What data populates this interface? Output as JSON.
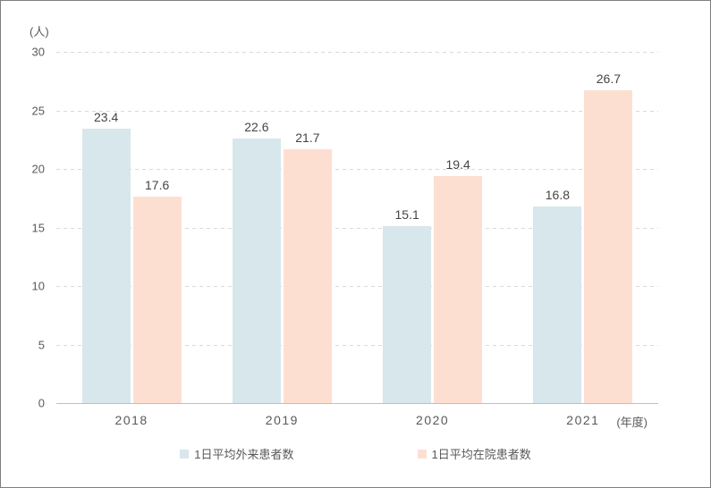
{
  "chart_data": {
    "type": "bar",
    "categories": [
      "2018",
      "2019",
      "2020",
      "2021"
    ],
    "series": [
      {
        "name": "1日平均外来患者数",
        "color": "#d7e7ec",
        "values": [
          23.4,
          22.6,
          15.1,
          16.8
        ]
      },
      {
        "name": "1日平均在院患者数",
        "color": "#fddfd2",
        "values": [
          17.6,
          21.7,
          19.4,
          26.7
        ]
      }
    ],
    "title": "",
    "xlabel": "(年度)",
    "ylabel": "(人)",
    "ylim": [
      0,
      30
    ],
    "yticks": [
      0,
      5,
      10,
      15,
      20,
      25,
      30
    ],
    "grid": "horizontal-dashed",
    "legend_position": "bottom",
    "bar_label_format": "one-decimal"
  },
  "style_colors": {
    "gridline": "#d9d9d9",
    "axis_line": "#bfbfbf",
    "tick_text": "#595959",
    "value_text": "#454545",
    "frame_border": "#7f7f7f"
  }
}
